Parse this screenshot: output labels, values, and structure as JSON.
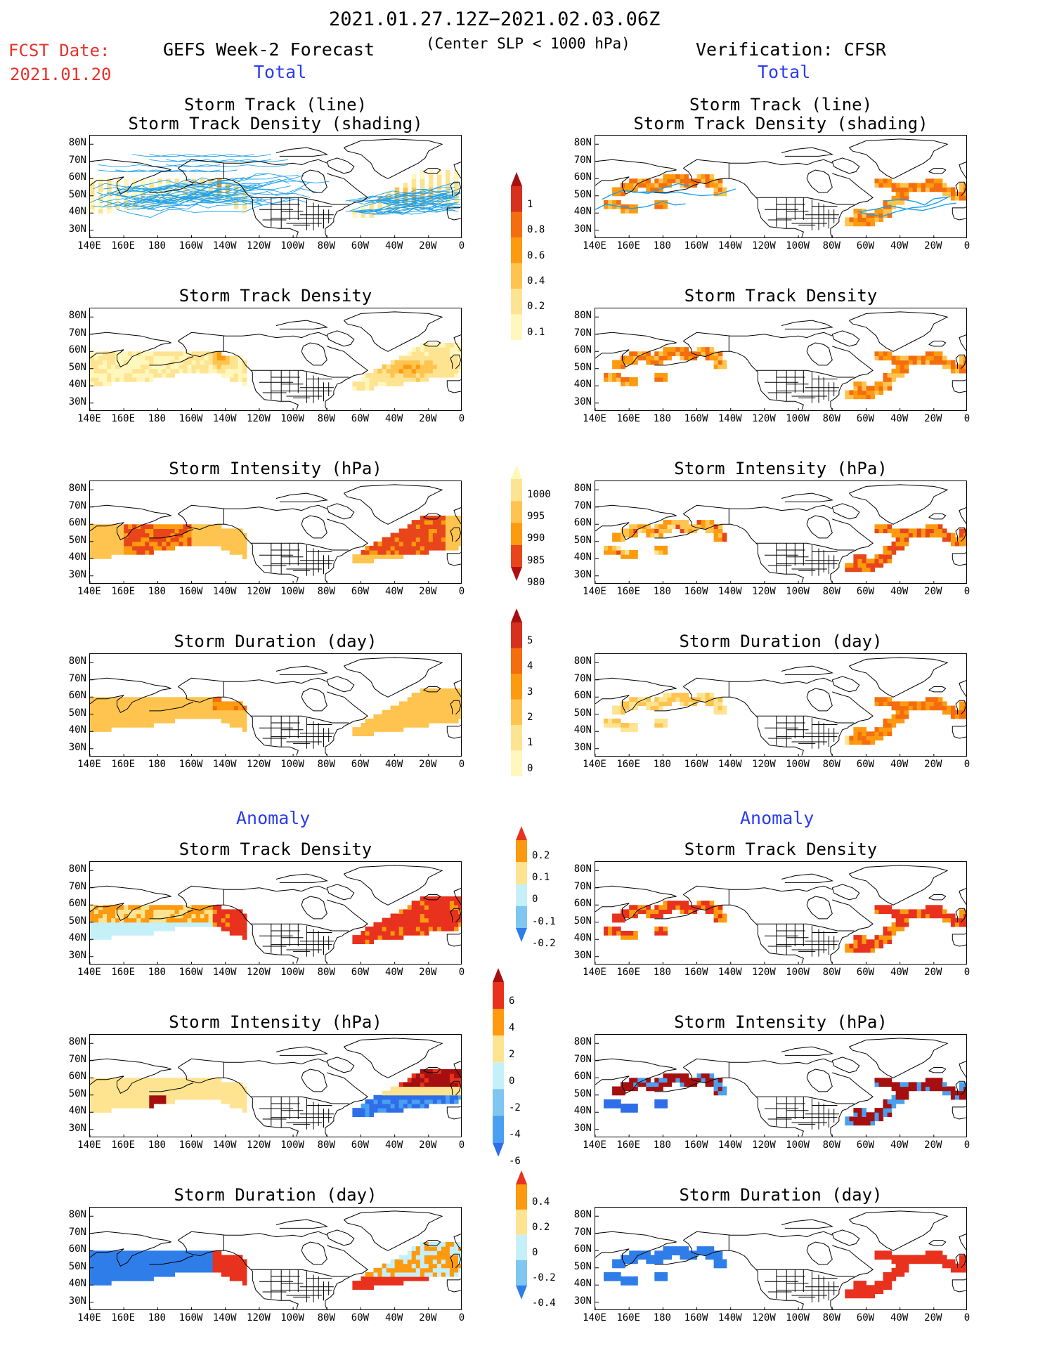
{
  "header": {
    "date_range": "2021.01.27.12Z−2021.02.03.06Z",
    "fcst_date_label": "FCST Date:",
    "fcst_date_value": "2021.01.20",
    "forecast_title": "GEFS Week-2 Forecast",
    "criterion": "(Center SLP < 1000 hPa)",
    "verification_title": "Verification: CFSR",
    "left_total": "Total",
    "right_total": "Total"
  },
  "section_labels": {
    "anomaly_left": "Anomaly",
    "anomaly_right": "Anomaly"
  },
  "axes": {
    "lat_labels": [
      "80N",
      "70N",
      "60N",
      "50N",
      "40N",
      "30N"
    ],
    "lon_labels": [
      "140E",
      "160E",
      "180",
      "160W",
      "140W",
      "120W",
      "100W",
      "80W",
      "60W",
      "40W",
      "20W",
      "0"
    ]
  },
  "panels": [
    {
      "id": "fc-track",
      "title": "Storm Track (line)\nStorm Track Density (shading)",
      "field": "track"
    },
    {
      "id": "fc-density",
      "title": "Storm Track Density",
      "field": "density"
    },
    {
      "id": "fc-intensity",
      "title": "Storm Intensity (hPa)",
      "field": "intensity"
    },
    {
      "id": "fc-duration",
      "title": "Storm Duration (day)",
      "field": "duration"
    },
    {
      "id": "fc-density-anom",
      "title": "Storm Track Density",
      "field": "density_anom"
    },
    {
      "id": "fc-intensity-anom",
      "title": "Storm Intensity (hPa)",
      "field": "intensity_anom"
    },
    {
      "id": "fc-duration-anom",
      "title": "Storm Duration (day)",
      "field": "duration_anom"
    },
    {
      "id": "vf-track",
      "title": "Storm Track (line)\nStorm Track Density (shading)",
      "field": "track"
    },
    {
      "id": "vf-density",
      "title": "Storm Track Density",
      "field": "density"
    },
    {
      "id": "vf-intensity",
      "title": "Storm Intensity (hPa)",
      "field": "intensity"
    },
    {
      "id": "vf-duration",
      "title": "Storm Duration (day)",
      "field": "duration"
    },
    {
      "id": "vf-density-anom",
      "title": "Storm Track Density",
      "field": "density_anom"
    },
    {
      "id": "vf-intensity-anom",
      "title": "Storm Intensity (hPa)",
      "field": "intensity_anom"
    },
    {
      "id": "vf-duration-anom",
      "title": "Storm Duration (day)",
      "field": "duration_anom"
    }
  ],
  "colorbars": [
    {
      "id": "density",
      "labels": [
        "1",
        "0.8",
        "0.6",
        "0.4",
        "0.2",
        "0.1"
      ],
      "colors": [
        "#a50f0f",
        "#d7301f",
        "#f46d0f",
        "#fd9a0f",
        "#fec44f",
        "#fee391",
        "#fff7bc"
      ]
    },
    {
      "id": "intensity",
      "labels": [
        "1000",
        "995",
        "990",
        "985",
        "980"
      ],
      "colors": [
        "#fff7bc",
        "#fee391",
        "#fec44f",
        "#fd9a0f",
        "#e8461a",
        "#b10f0f"
      ]
    },
    {
      "id": "duration",
      "labels": [
        "5",
        "4",
        "3",
        "2",
        "1",
        "0"
      ],
      "colors": [
        "#a50f0f",
        "#d7301f",
        "#f46d0f",
        "#fd9a0f",
        "#fec44f",
        "#fee391",
        "#fff7bc"
      ]
    },
    {
      "id": "density_anom",
      "labels": [
        "0.2",
        "0.1",
        "0",
        "-0.1",
        "-0.2"
      ],
      "colors": [
        "#e8321e",
        "#fd9a0f",
        "#fee391",
        "#c6f0f8",
        "#7fc6f0",
        "#2f7de8"
      ]
    },
    {
      "id": "intensity_anom",
      "labels": [
        "6",
        "4",
        "2",
        "0",
        "-2",
        "-4",
        "-6"
      ],
      "colors": [
        "#a50f0f",
        "#e8321e",
        "#fd9a0f",
        "#fee391",
        "#c6f0f8",
        "#7fc6f0",
        "#4aa0f0",
        "#2f6ee8"
      ]
    },
    {
      "id": "duration_anom",
      "labels": [
        "0.4",
        "0.2",
        "0",
        "-0.2",
        "-0.4"
      ],
      "colors": [
        "#e8321e",
        "#fd9a0f",
        "#fee391",
        "#c6f0f8",
        "#7fc6f0",
        "#2f7de8"
      ]
    }
  ],
  "colors": {
    "track_line": "#1fa0e8",
    "coast": "#000000",
    "title_red": "#e8322a",
    "title_blue": "#2a3cf0"
  }
}
